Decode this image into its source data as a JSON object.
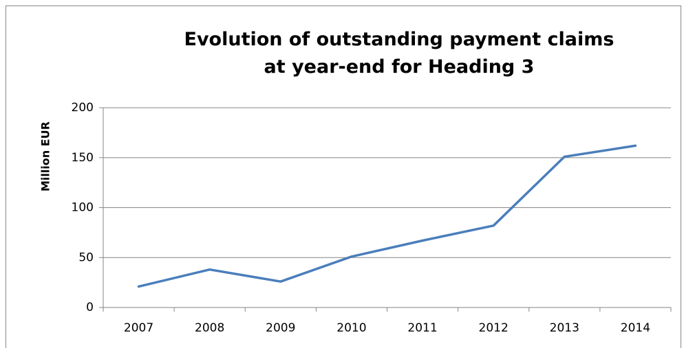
{
  "chart_data": {
    "type": "line",
    "title": "Evolution of outstanding payment claims at year-end for Heading 3",
    "y_label": "Million EUR",
    "categories": [
      "2007",
      "2008",
      "2009",
      "2010",
      "2011",
      "2012",
      "2013",
      "2014"
    ],
    "series": [
      {
        "color": "#4a7ebb",
        "values": [
          21,
          38,
          26,
          51,
          67,
          82,
          151,
          162
        ]
      }
    ],
    "ylim": [
      0,
      200
    ],
    "yticks": [
      0,
      50,
      100,
      150,
      200
    ],
    "grid": true
  }
}
